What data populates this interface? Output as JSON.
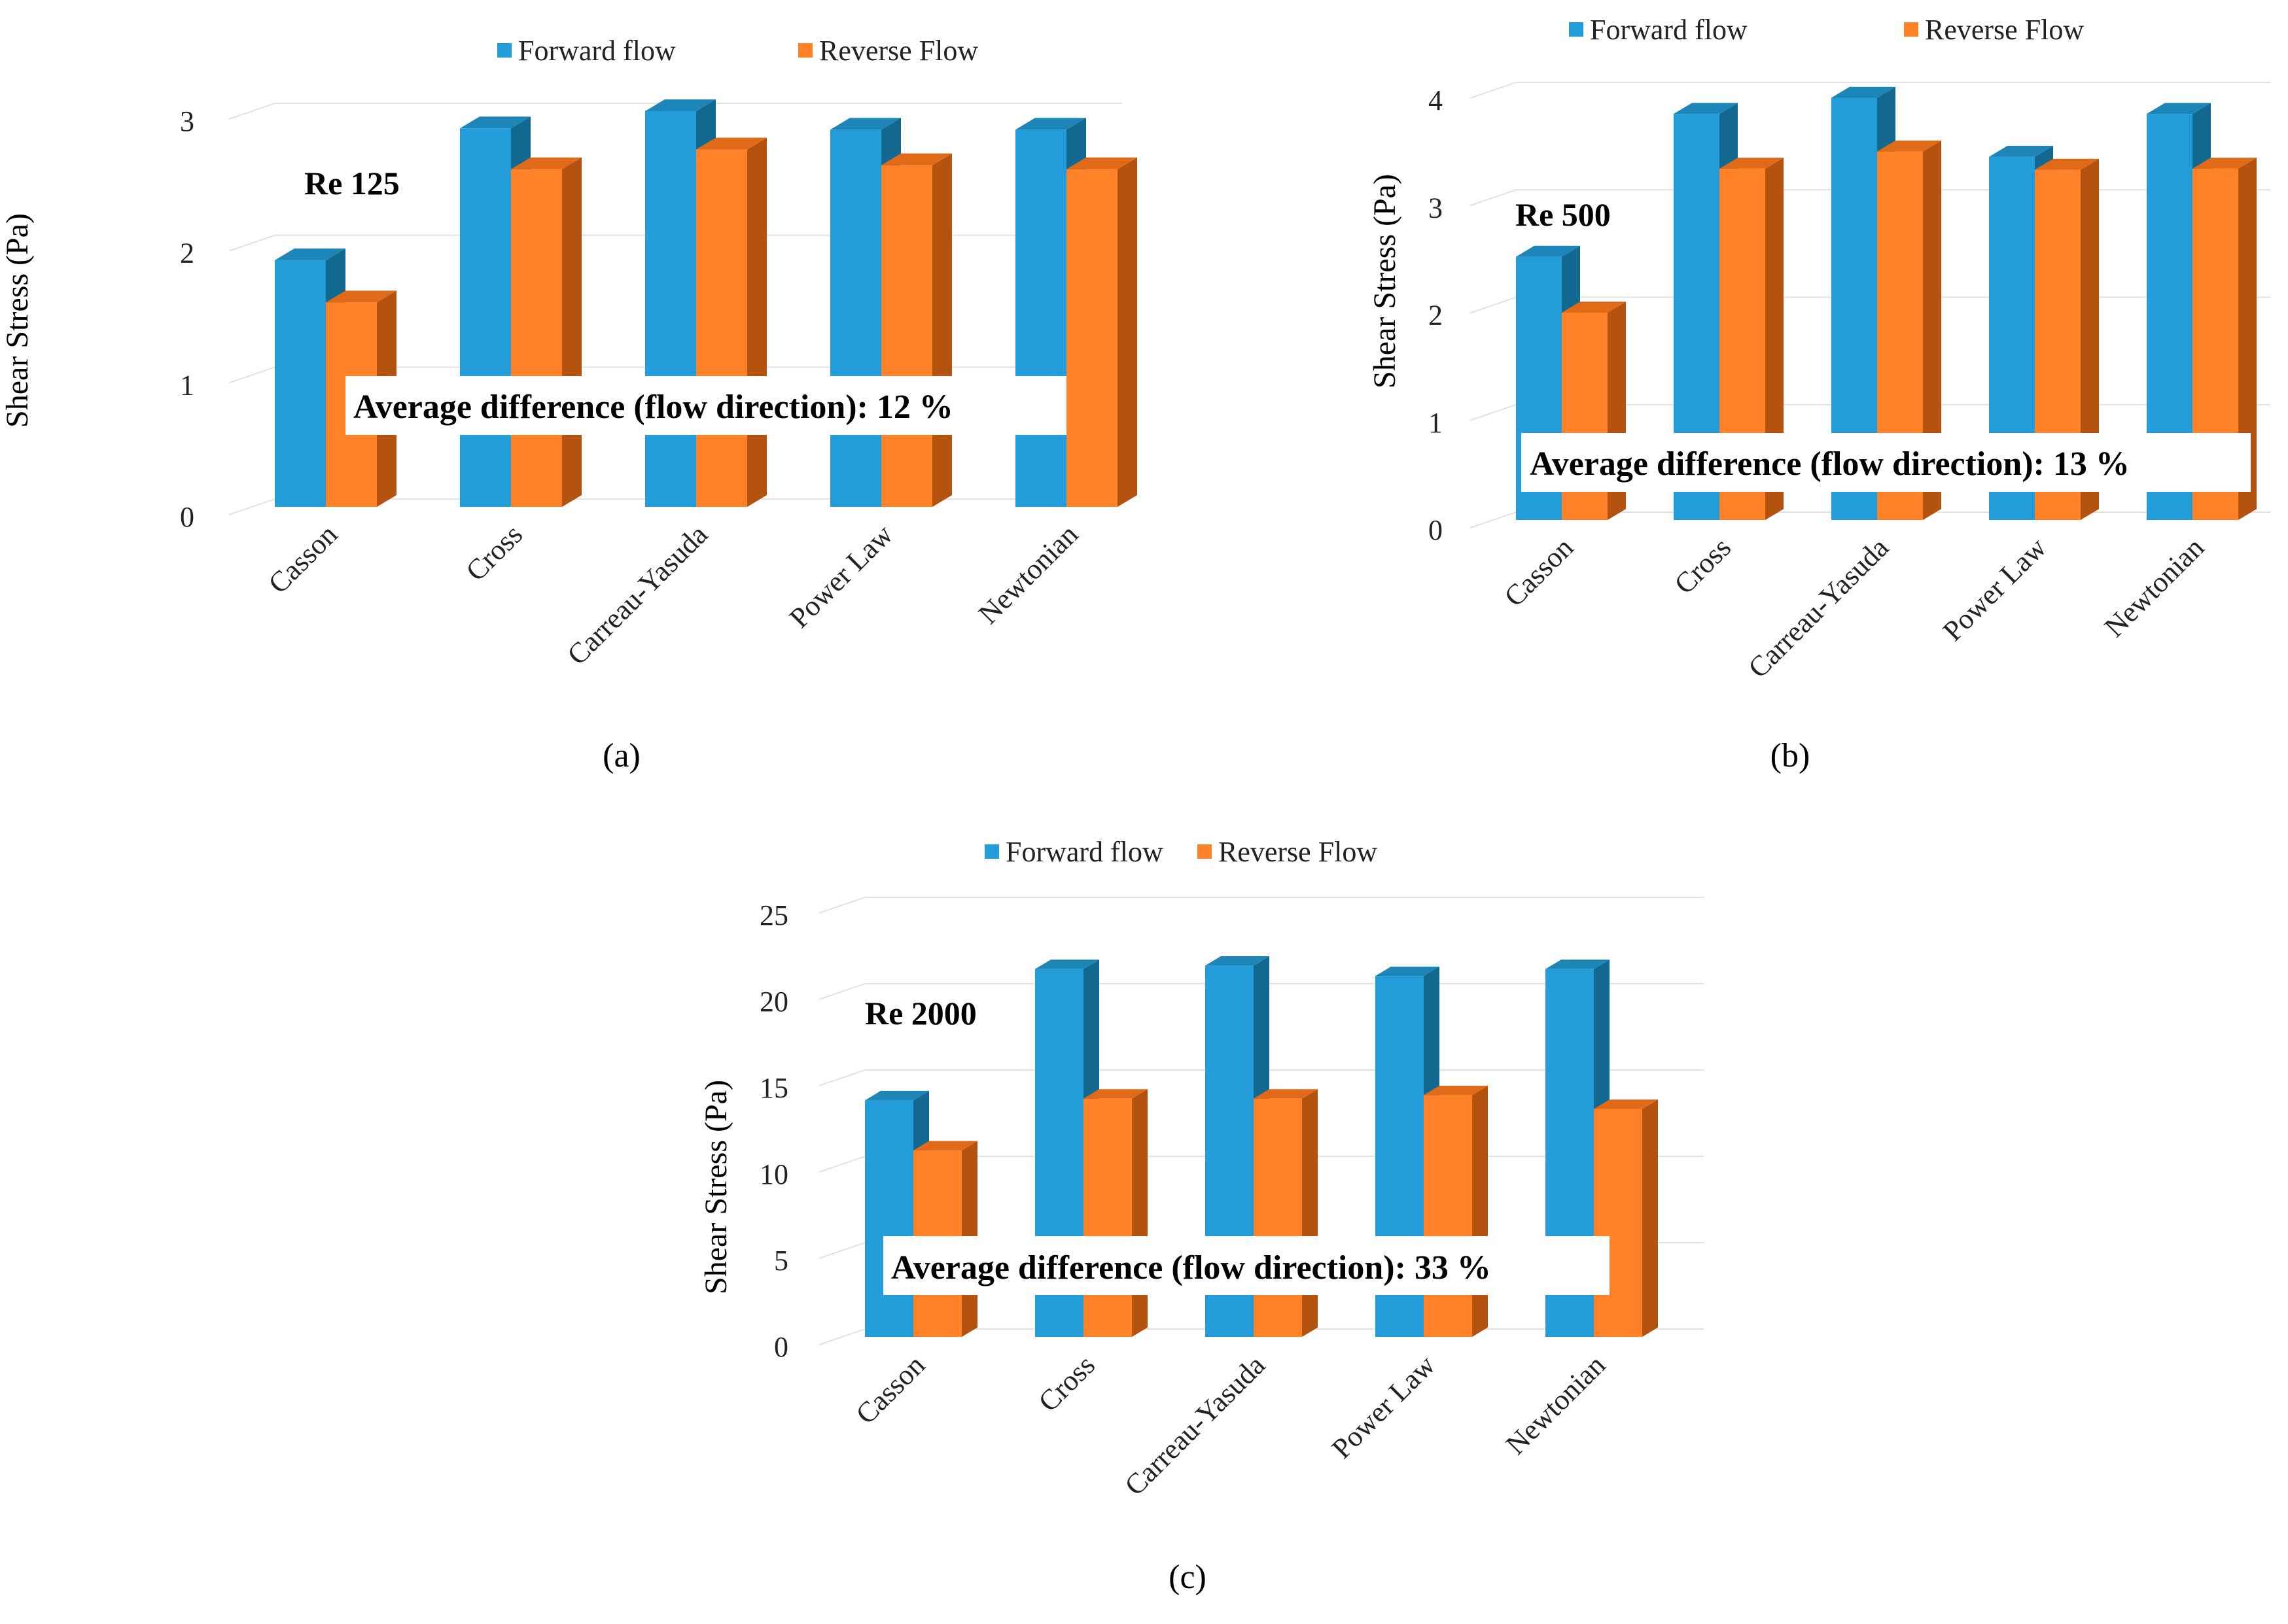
{
  "colors": {
    "forward_front": "#239DDA",
    "forward_top": "#1E85B8",
    "forward_side": "#13688F",
    "reverse_front": "#FF8128",
    "reverse_top": "#E06A18",
    "reverse_side": "#B3530F"
  },
  "chart_data": [
    {
      "type": "bar",
      "panel_label": "(a)",
      "annotation": "Re 125",
      "average_text": "Average  difference (flow direction): 12 %",
      "ylabel": "Shear Stress (Pa)",
      "ylim": [
        0,
        3
      ],
      "yticks": [
        "0",
        "1",
        "2",
        "3"
      ],
      "categories": [
        "Casson",
        "Cross",
        "Carreau-Yasuda",
        "Power Law",
        "Newtonian"
      ],
      "series": [
        {
          "name": "Forward flow",
          "values": [
            1.87,
            2.87,
            3.0,
            2.86,
            2.86
          ]
        },
        {
          "name": "Reverse Flow",
          "values": [
            1.55,
            2.56,
            2.71,
            2.59,
            2.56
          ]
        }
      ],
      "legend": "top-center"
    },
    {
      "type": "bar",
      "panel_label": "(b)",
      "annotation": "Re 500",
      "average_text": "Average  difference (flow direction): 13 %",
      "ylabel": "Shear Stress (Pa)",
      "ylim": [
        0,
        4
      ],
      "yticks": [
        "0",
        "1",
        "2",
        "3",
        "4"
      ],
      "categories": [
        "Casson",
        "Cross",
        "Carreau-Yasuda",
        "Power Law",
        "Newtonian"
      ],
      "series": [
        {
          "name": "Forward flow",
          "values": [
            2.45,
            3.78,
            3.93,
            3.38,
            3.78
          ]
        },
        {
          "name": "Reverse Flow",
          "values": [
            1.93,
            3.27,
            3.43,
            3.26,
            3.27
          ]
        }
      ],
      "legend": "top-center"
    },
    {
      "type": "bar",
      "panel_label": "(c)",
      "annotation": "Re 2000",
      "average_text": "Average  difference (flow direction): 33 %",
      "ylabel": "Shear Stress (Pa)",
      "ylim": [
        0,
        25
      ],
      "yticks": [
        "0",
        "5",
        "10",
        "15",
        "20",
        "25"
      ],
      "categories": [
        "Casson",
        "Cross",
        "Carreau-Yasuda",
        "Power Law",
        "Newtonian"
      ],
      "series": [
        {
          "name": "Forward flow",
          "values": [
            13.7,
            21.3,
            21.5,
            20.9,
            21.3
          ]
        },
        {
          "name": "Reverse Flow",
          "values": [
            10.8,
            13.8,
            13.8,
            14.0,
            13.2
          ]
        }
      ],
      "legend": "top-center"
    }
  ]
}
